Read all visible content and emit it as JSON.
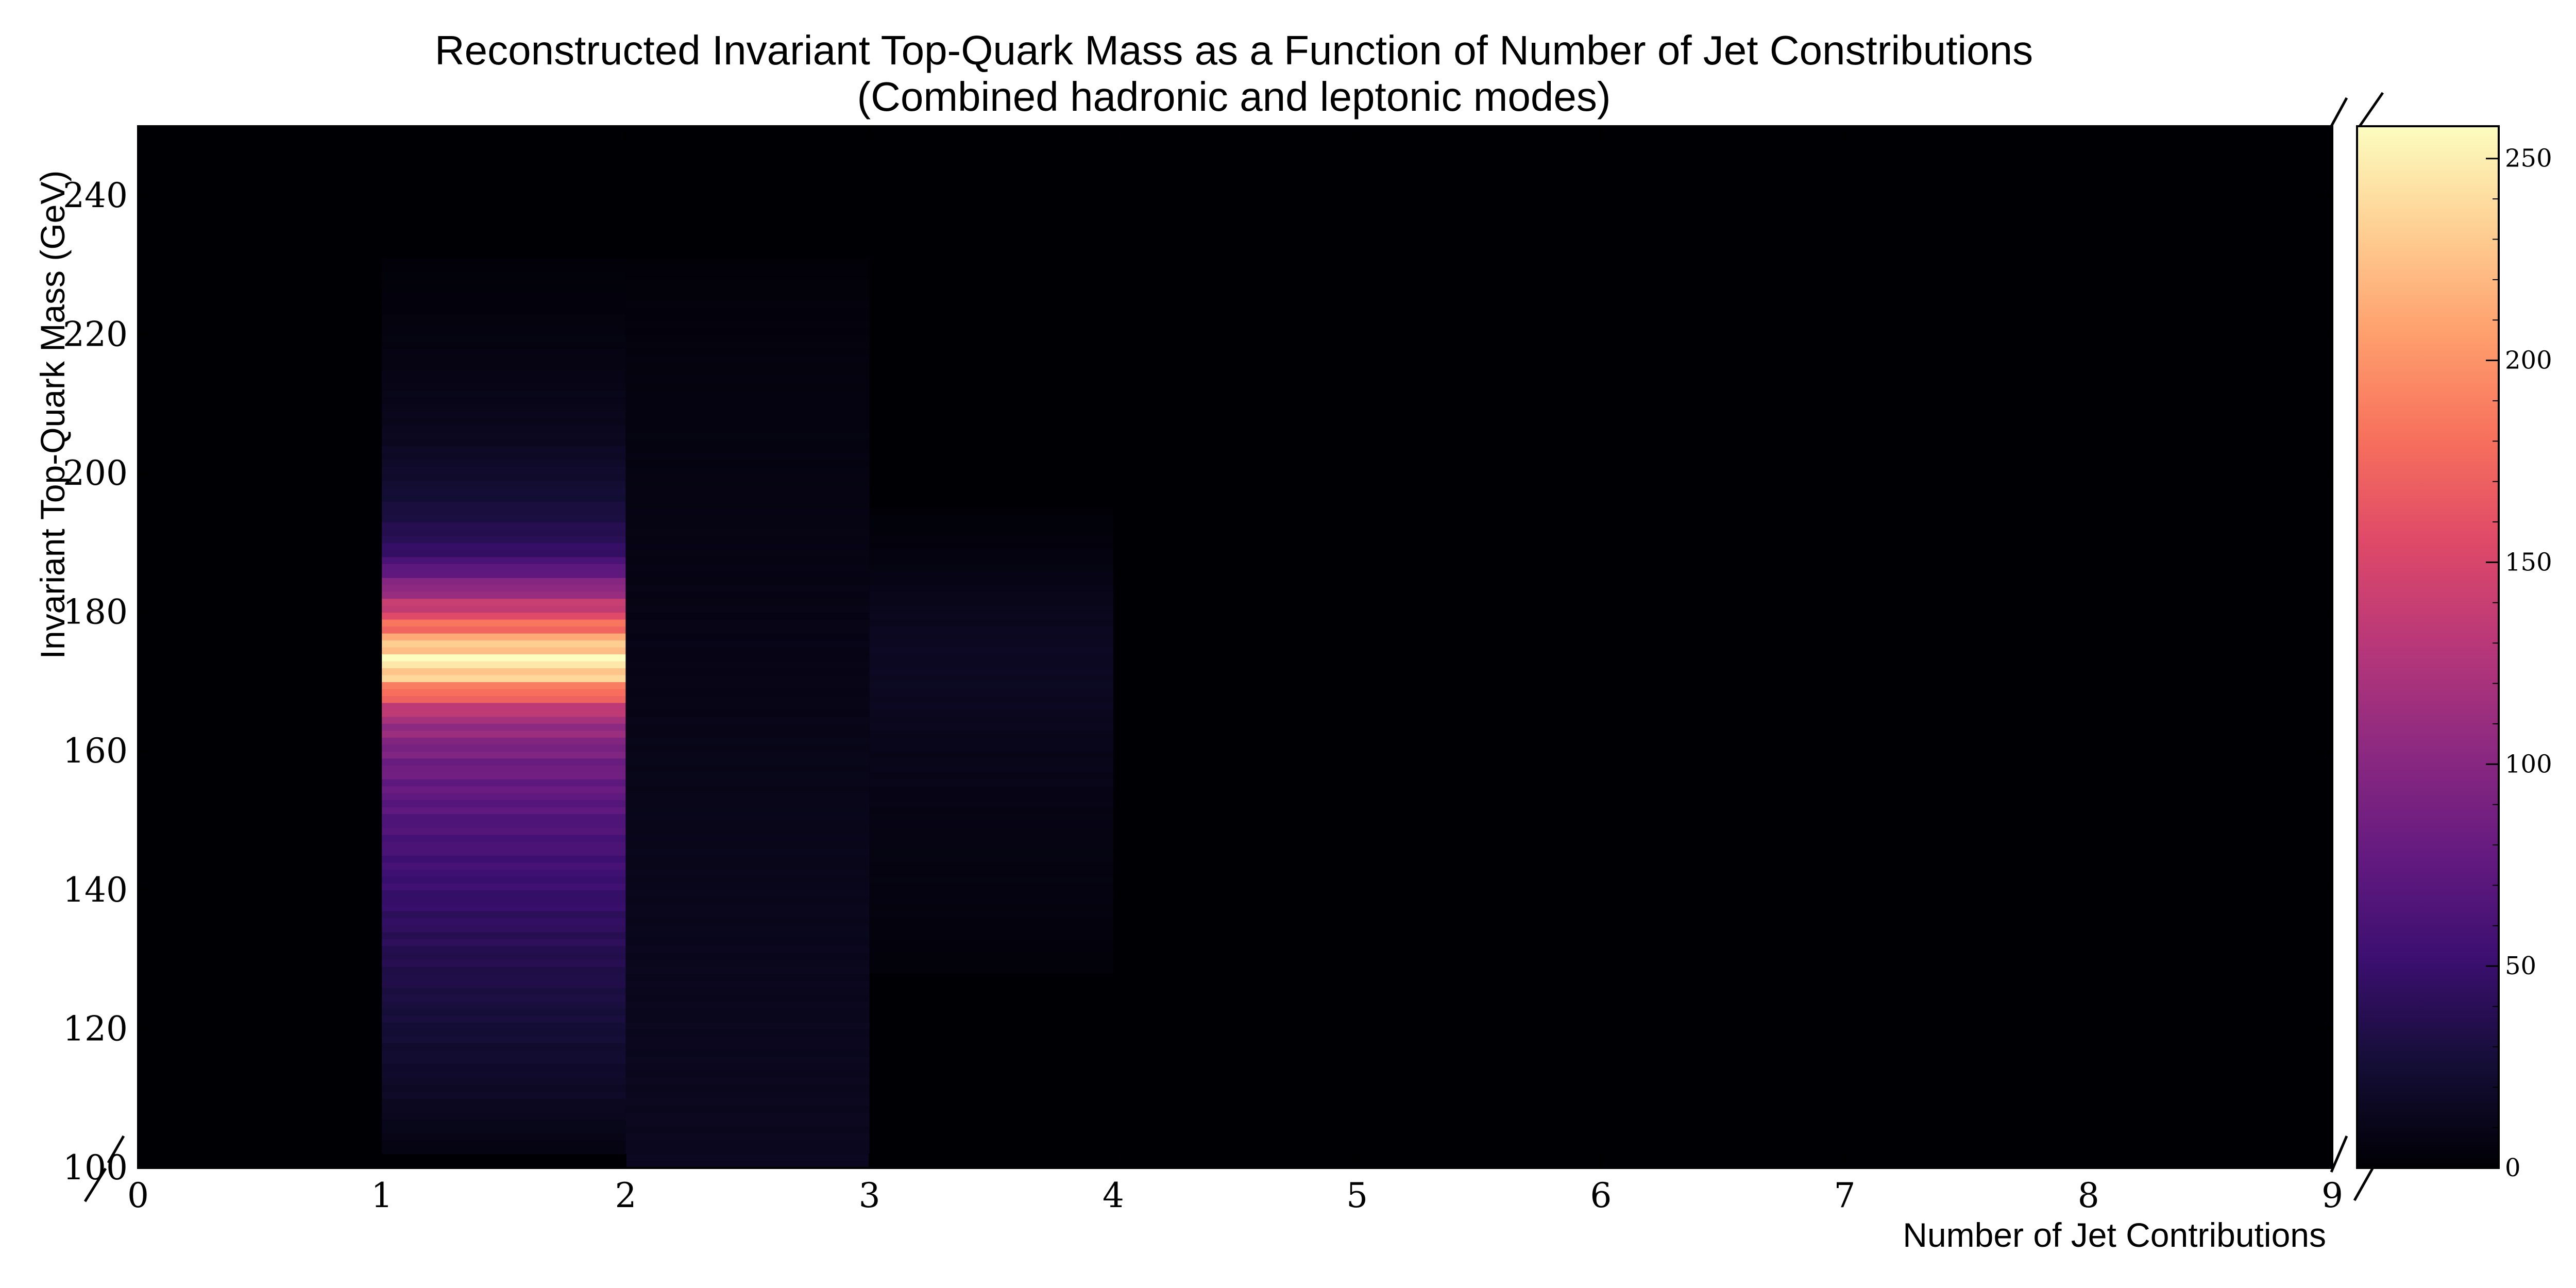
{
  "chart_data": {
    "type": "heatmap",
    "title": "Reconstructed Invariant Top-Quark Mass as a Function of Number of Jet Constributions",
    "subtitle": "(Combined hadronic and leptonic modes)",
    "xlabel": "Number of Jet Contributions",
    "ylabel": "Invariant Top-Quark Mass (GeV)",
    "xlim": [
      0,
      9
    ],
    "ylim": [
      100,
      250
    ],
    "x_ticks": [
      "0",
      "1",
      "2",
      "3",
      "4",
      "5",
      "6",
      "7",
      "8",
      "9"
    ],
    "y_ticks": [
      "100",
      "120",
      "140",
      "160",
      "180",
      "200",
      "220",
      "240"
    ],
    "colorbar": {
      "colormap": "magma",
      "range": [
        0,
        258
      ],
      "ticks": [
        "0",
        "50",
        "100",
        "150",
        "200",
        "250"
      ]
    },
    "columns": [
      {
        "x_range": [
          1,
          2
        ],
        "profile": [
          {
            "mass": 102,
            "count": 6
          },
          {
            "mass": 110,
            "count": 16
          },
          {
            "mass": 120,
            "count": 26
          },
          {
            "mass": 130,
            "count": 36
          },
          {
            "mass": 140,
            "count": 50
          },
          {
            "mass": 150,
            "count": 66
          },
          {
            "mass": 160,
            "count": 90
          },
          {
            "mass": 165,
            "count": 120
          },
          {
            "mass": 168,
            "count": 170
          },
          {
            "mass": 171,
            "count": 230
          },
          {
            "mass": 173,
            "count": 258
          },
          {
            "mass": 175,
            "count": 235
          },
          {
            "mass": 177,
            "count": 195
          },
          {
            "mass": 180,
            "count": 150
          },
          {
            "mass": 183,
            "count": 110
          },
          {
            "mass": 186,
            "count": 75
          },
          {
            "mass": 189,
            "count": 45
          },
          {
            "mass": 195,
            "count": 28
          },
          {
            "mass": 205,
            "count": 14
          },
          {
            "mass": 215,
            "count": 8
          },
          {
            "mass": 225,
            "count": 4
          },
          {
            "mass": 231,
            "count": 2
          }
        ]
      },
      {
        "x_range": [
          2,
          3
        ],
        "profile": [
          {
            "mass": 100,
            "count": 14
          },
          {
            "mass": 120,
            "count": 13
          },
          {
            "mass": 140,
            "count": 12
          },
          {
            "mass": 160,
            "count": 10
          },
          {
            "mass": 175,
            "count": 9
          },
          {
            "mass": 190,
            "count": 8
          },
          {
            "mass": 210,
            "count": 6
          },
          {
            "mass": 225,
            "count": 4
          },
          {
            "mass": 231,
            "count": 2
          }
        ]
      },
      {
        "x_range": [
          3,
          4
        ],
        "profile": [
          {
            "mass": 128,
            "count": 3
          },
          {
            "mass": 140,
            "count": 6
          },
          {
            "mass": 150,
            "count": 8
          },
          {
            "mass": 160,
            "count": 11
          },
          {
            "mass": 168,
            "count": 15
          },
          {
            "mass": 175,
            "count": 16
          },
          {
            "mass": 182,
            "count": 11
          },
          {
            "mass": 189,
            "count": 5
          },
          {
            "mass": 195,
            "count": 2
          }
        ]
      }
    ]
  }
}
